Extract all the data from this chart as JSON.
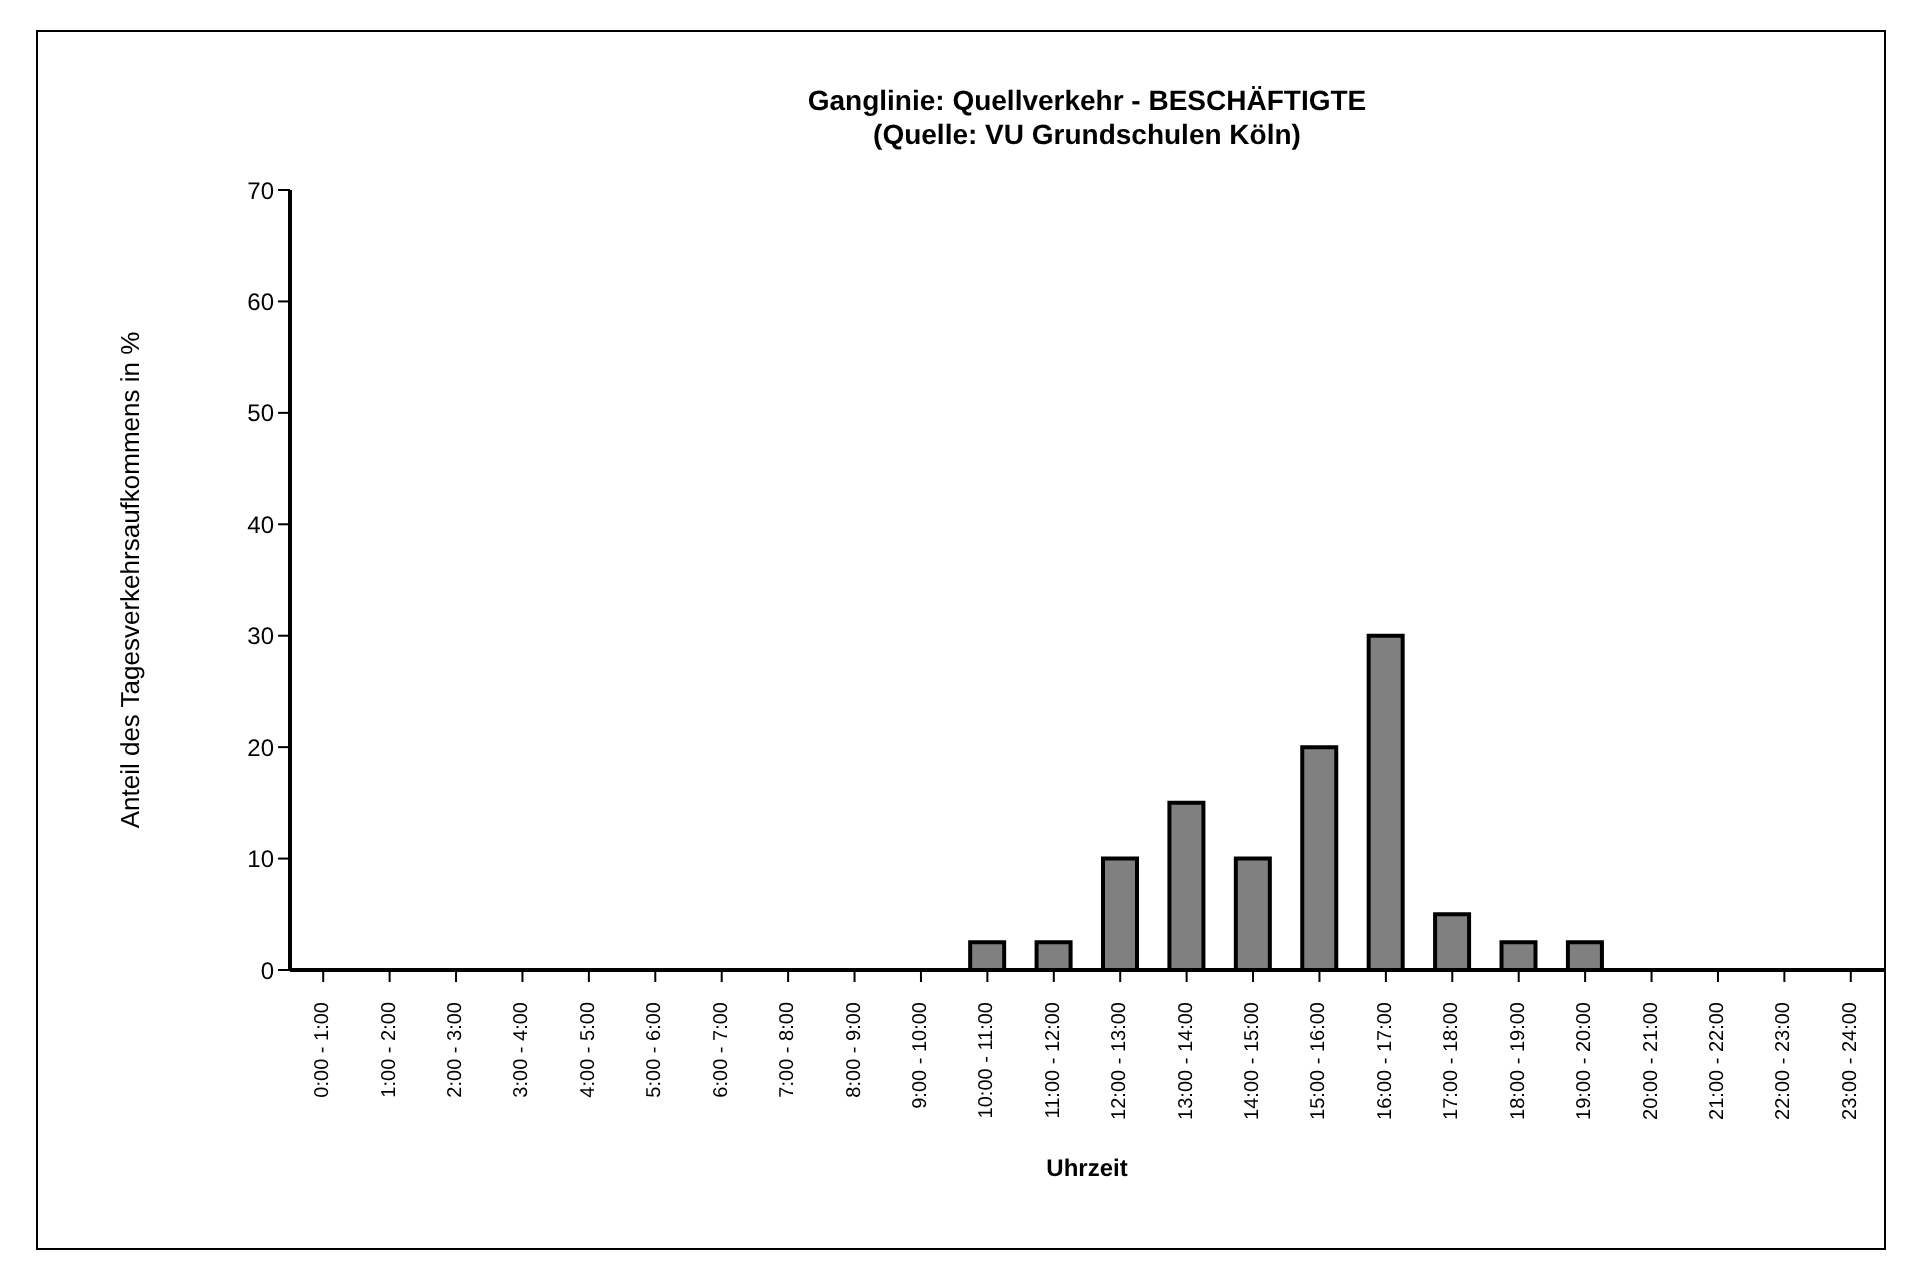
{
  "chart_data": {
    "type": "bar",
    "title": "Ganglinie: Quellverkehr - BESCHÄFTIGTE",
    "subtitle": "(Quelle: VU Grundschulen Köln)",
    "xlabel": "Uhrzeit",
    "ylabel": "Anteil des Tagesverkehrsaufkommens in %",
    "categories": [
      "0:00 - 1:00",
      "1:00 - 2:00",
      "2:00 - 3:00",
      "3:00 - 4:00",
      "4:00 - 5:00",
      "5:00 - 6:00",
      "6:00 - 7:00",
      "7:00 - 8:00",
      "8:00 - 9:00",
      "9:00 - 10:00",
      "10:00 - 11:00",
      "11:00 - 12:00",
      "12:00 - 13:00",
      "13:00 - 14:00",
      "14:00 - 15:00",
      "15:00 - 16:00",
      "16:00 - 17:00",
      "17:00 - 18:00",
      "18:00 - 19:00",
      "19:00 - 20:00",
      "20:00 - 21:00",
      "21:00 - 22:00",
      "22:00 - 23:00",
      "23:00 - 24:00"
    ],
    "values": [
      0,
      0,
      0,
      0,
      0,
      0,
      0,
      0,
      0,
      0,
      2.5,
      2.5,
      10,
      15,
      10,
      20,
      30,
      5,
      2.5,
      2.5,
      0,
      0,
      0,
      0
    ],
    "color": "#808080",
    "ylim": [
      0,
      70
    ],
    "yticks": [
      0,
      10,
      20,
      30,
      40,
      50,
      60,
      70
    ],
    "grid": false,
    "legend": false
  }
}
